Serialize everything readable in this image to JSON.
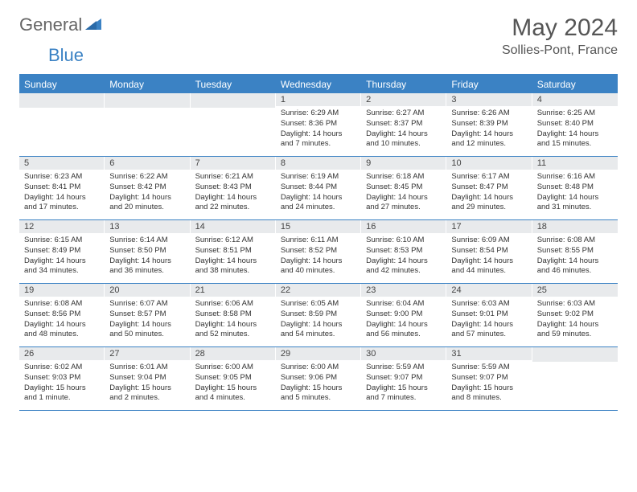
{
  "brand": {
    "gray": "General",
    "blue": "Blue"
  },
  "title": "May 2024",
  "location": "Sollies-Pont, France",
  "colors": {
    "accent": "#3b82c4",
    "header_text": "#ffffff",
    "daynum_bg": "#e8eaec",
    "text": "#333333",
    "title_text": "#555555",
    "logo_gray": "#666666"
  },
  "day_headers": [
    "Sunday",
    "Monday",
    "Tuesday",
    "Wednesday",
    "Thursday",
    "Friday",
    "Saturday"
  ],
  "weeks": [
    [
      {
        "num": "",
        "sunrise": "",
        "sunset": "",
        "daylight": ""
      },
      {
        "num": "",
        "sunrise": "",
        "sunset": "",
        "daylight": ""
      },
      {
        "num": "",
        "sunrise": "",
        "sunset": "",
        "daylight": ""
      },
      {
        "num": "1",
        "sunrise": "Sunrise: 6:29 AM",
        "sunset": "Sunset: 8:36 PM",
        "daylight": "Daylight: 14 hours and 7 minutes."
      },
      {
        "num": "2",
        "sunrise": "Sunrise: 6:27 AM",
        "sunset": "Sunset: 8:37 PM",
        "daylight": "Daylight: 14 hours and 10 minutes."
      },
      {
        "num": "3",
        "sunrise": "Sunrise: 6:26 AM",
        "sunset": "Sunset: 8:39 PM",
        "daylight": "Daylight: 14 hours and 12 minutes."
      },
      {
        "num": "4",
        "sunrise": "Sunrise: 6:25 AM",
        "sunset": "Sunset: 8:40 PM",
        "daylight": "Daylight: 14 hours and 15 minutes."
      }
    ],
    [
      {
        "num": "5",
        "sunrise": "Sunrise: 6:23 AM",
        "sunset": "Sunset: 8:41 PM",
        "daylight": "Daylight: 14 hours and 17 minutes."
      },
      {
        "num": "6",
        "sunrise": "Sunrise: 6:22 AM",
        "sunset": "Sunset: 8:42 PM",
        "daylight": "Daylight: 14 hours and 20 minutes."
      },
      {
        "num": "7",
        "sunrise": "Sunrise: 6:21 AM",
        "sunset": "Sunset: 8:43 PM",
        "daylight": "Daylight: 14 hours and 22 minutes."
      },
      {
        "num": "8",
        "sunrise": "Sunrise: 6:19 AM",
        "sunset": "Sunset: 8:44 PM",
        "daylight": "Daylight: 14 hours and 24 minutes."
      },
      {
        "num": "9",
        "sunrise": "Sunrise: 6:18 AM",
        "sunset": "Sunset: 8:45 PM",
        "daylight": "Daylight: 14 hours and 27 minutes."
      },
      {
        "num": "10",
        "sunrise": "Sunrise: 6:17 AM",
        "sunset": "Sunset: 8:47 PM",
        "daylight": "Daylight: 14 hours and 29 minutes."
      },
      {
        "num": "11",
        "sunrise": "Sunrise: 6:16 AM",
        "sunset": "Sunset: 8:48 PM",
        "daylight": "Daylight: 14 hours and 31 minutes."
      }
    ],
    [
      {
        "num": "12",
        "sunrise": "Sunrise: 6:15 AM",
        "sunset": "Sunset: 8:49 PM",
        "daylight": "Daylight: 14 hours and 34 minutes."
      },
      {
        "num": "13",
        "sunrise": "Sunrise: 6:14 AM",
        "sunset": "Sunset: 8:50 PM",
        "daylight": "Daylight: 14 hours and 36 minutes."
      },
      {
        "num": "14",
        "sunrise": "Sunrise: 6:12 AM",
        "sunset": "Sunset: 8:51 PM",
        "daylight": "Daylight: 14 hours and 38 minutes."
      },
      {
        "num": "15",
        "sunrise": "Sunrise: 6:11 AM",
        "sunset": "Sunset: 8:52 PM",
        "daylight": "Daylight: 14 hours and 40 minutes."
      },
      {
        "num": "16",
        "sunrise": "Sunrise: 6:10 AM",
        "sunset": "Sunset: 8:53 PM",
        "daylight": "Daylight: 14 hours and 42 minutes."
      },
      {
        "num": "17",
        "sunrise": "Sunrise: 6:09 AM",
        "sunset": "Sunset: 8:54 PM",
        "daylight": "Daylight: 14 hours and 44 minutes."
      },
      {
        "num": "18",
        "sunrise": "Sunrise: 6:08 AM",
        "sunset": "Sunset: 8:55 PM",
        "daylight": "Daylight: 14 hours and 46 minutes."
      }
    ],
    [
      {
        "num": "19",
        "sunrise": "Sunrise: 6:08 AM",
        "sunset": "Sunset: 8:56 PM",
        "daylight": "Daylight: 14 hours and 48 minutes."
      },
      {
        "num": "20",
        "sunrise": "Sunrise: 6:07 AM",
        "sunset": "Sunset: 8:57 PM",
        "daylight": "Daylight: 14 hours and 50 minutes."
      },
      {
        "num": "21",
        "sunrise": "Sunrise: 6:06 AM",
        "sunset": "Sunset: 8:58 PM",
        "daylight": "Daylight: 14 hours and 52 minutes."
      },
      {
        "num": "22",
        "sunrise": "Sunrise: 6:05 AM",
        "sunset": "Sunset: 8:59 PM",
        "daylight": "Daylight: 14 hours and 54 minutes."
      },
      {
        "num": "23",
        "sunrise": "Sunrise: 6:04 AM",
        "sunset": "Sunset: 9:00 PM",
        "daylight": "Daylight: 14 hours and 56 minutes."
      },
      {
        "num": "24",
        "sunrise": "Sunrise: 6:03 AM",
        "sunset": "Sunset: 9:01 PM",
        "daylight": "Daylight: 14 hours and 57 minutes."
      },
      {
        "num": "25",
        "sunrise": "Sunrise: 6:03 AM",
        "sunset": "Sunset: 9:02 PM",
        "daylight": "Daylight: 14 hours and 59 minutes."
      }
    ],
    [
      {
        "num": "26",
        "sunrise": "Sunrise: 6:02 AM",
        "sunset": "Sunset: 9:03 PM",
        "daylight": "Daylight: 15 hours and 1 minute."
      },
      {
        "num": "27",
        "sunrise": "Sunrise: 6:01 AM",
        "sunset": "Sunset: 9:04 PM",
        "daylight": "Daylight: 15 hours and 2 minutes."
      },
      {
        "num": "28",
        "sunrise": "Sunrise: 6:00 AM",
        "sunset": "Sunset: 9:05 PM",
        "daylight": "Daylight: 15 hours and 4 minutes."
      },
      {
        "num": "29",
        "sunrise": "Sunrise: 6:00 AM",
        "sunset": "Sunset: 9:06 PM",
        "daylight": "Daylight: 15 hours and 5 minutes."
      },
      {
        "num": "30",
        "sunrise": "Sunrise: 5:59 AM",
        "sunset": "Sunset: 9:07 PM",
        "daylight": "Daylight: 15 hours and 7 minutes."
      },
      {
        "num": "31",
        "sunrise": "Sunrise: 5:59 AM",
        "sunset": "Sunset: 9:07 PM",
        "daylight": "Daylight: 15 hours and 8 minutes."
      },
      {
        "num": "",
        "sunrise": "",
        "sunset": "",
        "daylight": ""
      }
    ]
  ]
}
